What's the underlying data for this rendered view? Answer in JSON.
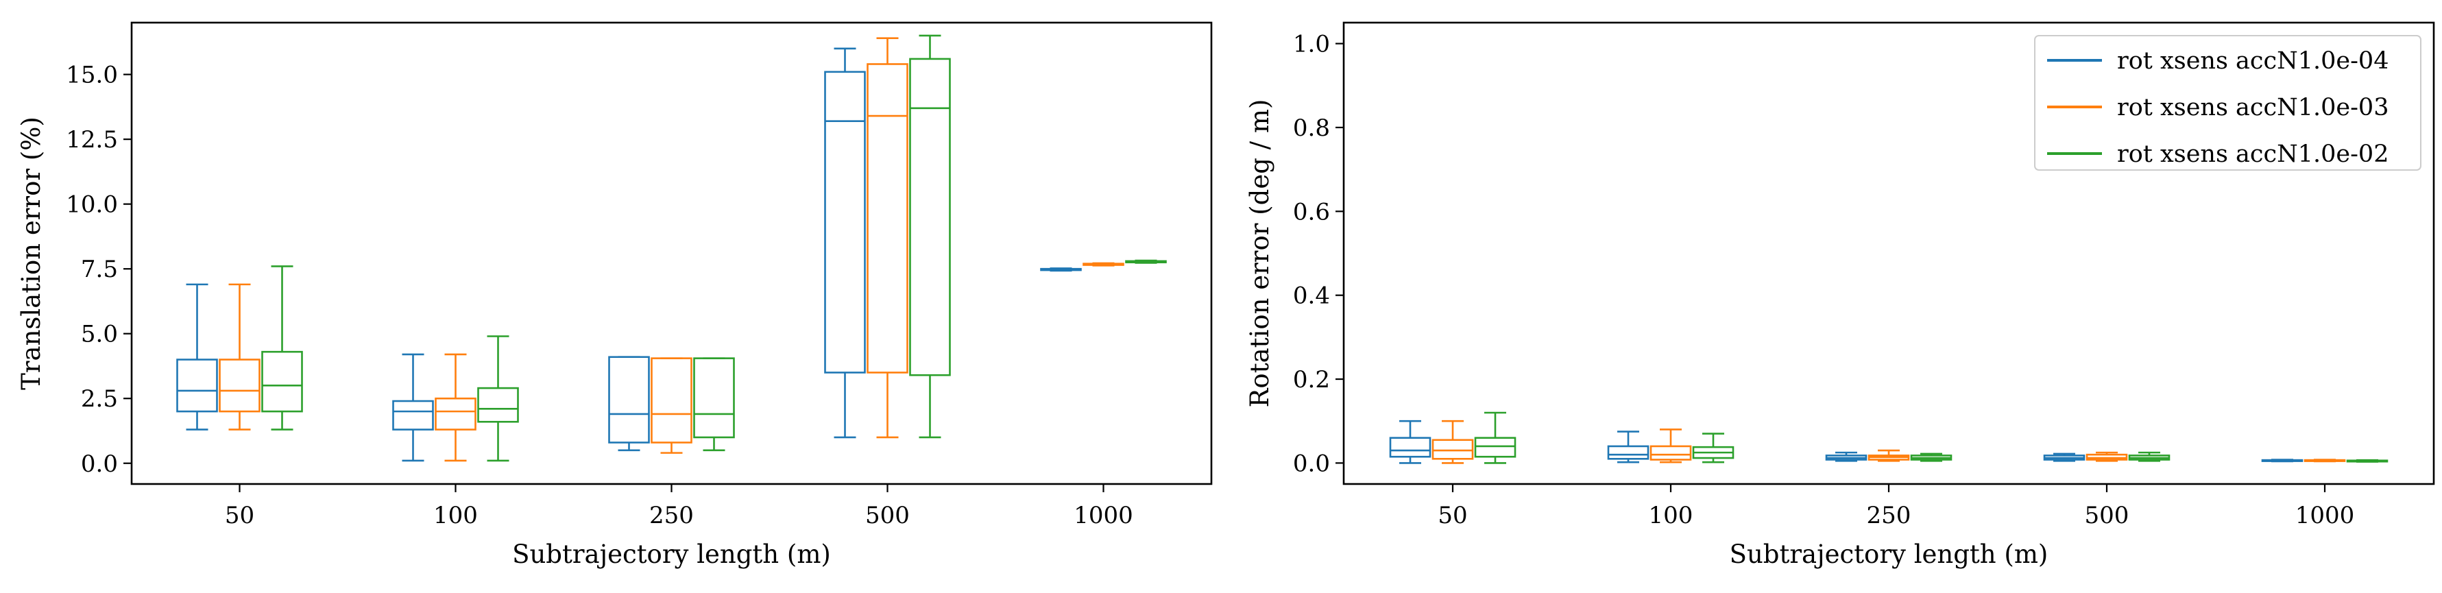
{
  "colors": {
    "series": [
      "#1f77b4",
      "#ff7f0e",
      "#2ca02c"
    ],
    "axes": "#000000",
    "background": "#ffffff"
  },
  "legend": {
    "placement": "top-right",
    "entries": [
      "rot xsens accN1.0e-04",
      "rot xsens accN1.0e-03",
      "rot xsens accN1.0e-02"
    ]
  },
  "chart_data": [
    {
      "type": "box",
      "xlabel": "Subtrajectory length (m)",
      "ylabel": "Translation error (%)",
      "categories": [
        "50",
        "100",
        "250",
        "500",
        "1000"
      ],
      "ylim": [
        -0.8,
        17.0
      ],
      "yticks": [
        0.0,
        2.5,
        5.0,
        7.5,
        10.0,
        12.5,
        15.0
      ],
      "ytick_labels": [
        "0.0",
        "2.5",
        "5.0",
        "7.5",
        "10.0",
        "12.5",
        "15.0"
      ],
      "grid": false,
      "series": [
        {
          "name": "rot xsens accN1.0e-04",
          "boxes": [
            {
              "whislo": 1.3,
              "q1": 2.0,
              "med": 2.8,
              "q3": 4.0,
              "whishi": 6.9
            },
            {
              "whislo": 0.1,
              "q1": 1.3,
              "med": 2.0,
              "q3": 2.4,
              "whishi": 4.2
            },
            {
              "whislo": 0.5,
              "q1": 0.8,
              "med": 1.9,
              "q3": 4.1,
              "whishi": 4.1
            },
            {
              "whislo": 1.0,
              "q1": 3.5,
              "med": 13.2,
              "q3": 15.1,
              "whishi": 16.0
            },
            {
              "whislo": 7.43,
              "q1": 7.45,
              "med": 7.47,
              "q3": 7.5,
              "whishi": 7.52
            }
          ]
        },
        {
          "name": "rot xsens accN1.0e-03",
          "boxes": [
            {
              "whislo": 1.3,
              "q1": 2.0,
              "med": 2.8,
              "q3": 4.0,
              "whishi": 6.9
            },
            {
              "whislo": 0.1,
              "q1": 1.3,
              "med": 2.0,
              "q3": 2.5,
              "whishi": 4.2
            },
            {
              "whislo": 0.4,
              "q1": 0.8,
              "med": 1.9,
              "q3": 4.05,
              "whishi": 4.05
            },
            {
              "whislo": 1.0,
              "q1": 3.5,
              "med": 13.4,
              "q3": 15.4,
              "whishi": 16.4
            },
            {
              "whislo": 7.63,
              "q1": 7.65,
              "med": 7.67,
              "q3": 7.7,
              "whishi": 7.72
            }
          ]
        },
        {
          "name": "rot xsens accN1.0e-02",
          "boxes": [
            {
              "whislo": 1.3,
              "q1": 2.0,
              "med": 3.0,
              "q3": 4.3,
              "whishi": 7.6
            },
            {
              "whislo": 0.1,
              "q1": 1.6,
              "med": 2.1,
              "q3": 2.9,
              "whishi": 4.9
            },
            {
              "whislo": 0.5,
              "q1": 1.0,
              "med": 1.9,
              "q3": 4.05,
              "whishi": 4.05
            },
            {
              "whislo": 1.0,
              "q1": 3.4,
              "med": 13.7,
              "q3": 15.6,
              "whishi": 16.5
            },
            {
              "whislo": 7.73,
              "q1": 7.75,
              "med": 7.77,
              "q3": 7.8,
              "whishi": 7.82
            }
          ]
        }
      ]
    },
    {
      "type": "box",
      "xlabel": "Subtrajectory length (m)",
      "ylabel": "Rotation error (deg / m)",
      "categories": [
        "50",
        "100",
        "250",
        "500",
        "1000"
      ],
      "ylim": [
        -0.05,
        1.05
      ],
      "yticks": [
        0.0,
        0.2,
        0.4,
        0.6,
        0.8,
        1.0
      ],
      "ytick_labels": [
        "0.0",
        "0.2",
        "0.4",
        "0.6",
        "0.8",
        "1.0"
      ],
      "grid": false,
      "series": [
        {
          "name": "rot xsens accN1.0e-04",
          "boxes": [
            {
              "whislo": 0.0,
              "q1": 0.015,
              "med": 0.03,
              "q3": 0.06,
              "whishi": 0.1
            },
            {
              "whislo": 0.002,
              "q1": 0.01,
              "med": 0.02,
              "q3": 0.04,
              "whishi": 0.075
            },
            {
              "whislo": 0.005,
              "q1": 0.008,
              "med": 0.012,
              "q3": 0.018,
              "whishi": 0.025
            },
            {
              "whislo": 0.005,
              "q1": 0.008,
              "med": 0.012,
              "q3": 0.018,
              "whishi": 0.022
            },
            {
              "whislo": 0.004,
              "q1": 0.005,
              "med": 0.006,
              "q3": 0.007,
              "whishi": 0.008
            }
          ]
        },
        {
          "name": "rot xsens accN1.0e-03",
          "boxes": [
            {
              "whislo": 0.0,
              "q1": 0.01,
              "med": 0.03,
              "q3": 0.055,
              "whishi": 0.1
            },
            {
              "whislo": 0.002,
              "q1": 0.008,
              "med": 0.02,
              "q3": 0.04,
              "whishi": 0.08
            },
            {
              "whislo": 0.005,
              "q1": 0.008,
              "med": 0.014,
              "q3": 0.018,
              "whishi": 0.03
            },
            {
              "whislo": 0.005,
              "q1": 0.008,
              "med": 0.012,
              "q3": 0.02,
              "whishi": 0.025
            },
            {
              "whislo": 0.004,
              "q1": 0.005,
              "med": 0.006,
              "q3": 0.007,
              "whishi": 0.008
            }
          ]
        },
        {
          "name": "rot xsens accN1.0e-02",
          "boxes": [
            {
              "whislo": 0.0,
              "q1": 0.015,
              "med": 0.04,
              "q3": 0.06,
              "whishi": 0.12
            },
            {
              "whislo": 0.002,
              "q1": 0.012,
              "med": 0.025,
              "q3": 0.038,
              "whishi": 0.07
            },
            {
              "whislo": 0.005,
              "q1": 0.008,
              "med": 0.012,
              "q3": 0.018,
              "whishi": 0.022
            },
            {
              "whislo": 0.005,
              "q1": 0.008,
              "med": 0.012,
              "q3": 0.018,
              "whishi": 0.025
            },
            {
              "whislo": 0.003,
              "q1": 0.004,
              "med": 0.005,
              "q3": 0.006,
              "whishi": 0.007
            }
          ]
        }
      ]
    }
  ]
}
